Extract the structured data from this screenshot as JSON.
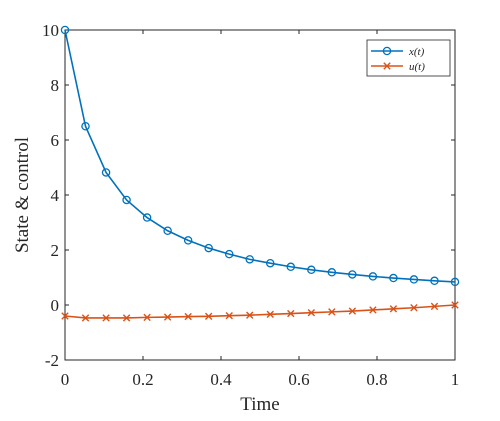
{
  "chart_data": {
    "type": "line",
    "xlabel": "Time",
    "ylabel": "State & control",
    "xlim": [
      0,
      1
    ],
    "ylim": [
      -2,
      10
    ],
    "xticks": [
      0,
      0.2,
      0.4,
      0.6,
      0.8,
      1
    ],
    "xtick_labels": [
      "0",
      "0.2",
      "0.4",
      "0.6",
      "0.8",
      "1"
    ],
    "yticks": [
      -2,
      0,
      2,
      4,
      6,
      8,
      10
    ],
    "ytick_labels": [
      "-2",
      "0",
      "2",
      "4",
      "6",
      "8",
      "10"
    ],
    "grid": false,
    "legend_position": "top-right",
    "x": [
      0,
      0.0526,
      0.1053,
      0.1579,
      0.2105,
      0.2632,
      0.3158,
      0.3684,
      0.4211,
      0.4737,
      0.5263,
      0.5789,
      0.6316,
      0.6842,
      0.7368,
      0.7895,
      0.8421,
      0.8947,
      0.9474,
      1.0
    ],
    "series": [
      {
        "name": "x(t)",
        "marker": "circle",
        "color": "#0072BD",
        "values": [
          10.0,
          6.5,
          4.82,
          3.82,
          3.18,
          2.7,
          2.35,
          2.07,
          1.85,
          1.66,
          1.52,
          1.39,
          1.28,
          1.19,
          1.11,
          1.04,
          0.98,
          0.93,
          0.88,
          0.84
        ]
      },
      {
        "name": "u(t)",
        "marker": "x",
        "color": "#D95319",
        "values": [
          -0.4,
          -0.47,
          -0.47,
          -0.47,
          -0.45,
          -0.44,
          -0.42,
          -0.41,
          -0.39,
          -0.37,
          -0.34,
          -0.31,
          -0.28,
          -0.25,
          -0.22,
          -0.18,
          -0.14,
          -0.1,
          -0.05,
          0.0
        ]
      }
    ]
  }
}
